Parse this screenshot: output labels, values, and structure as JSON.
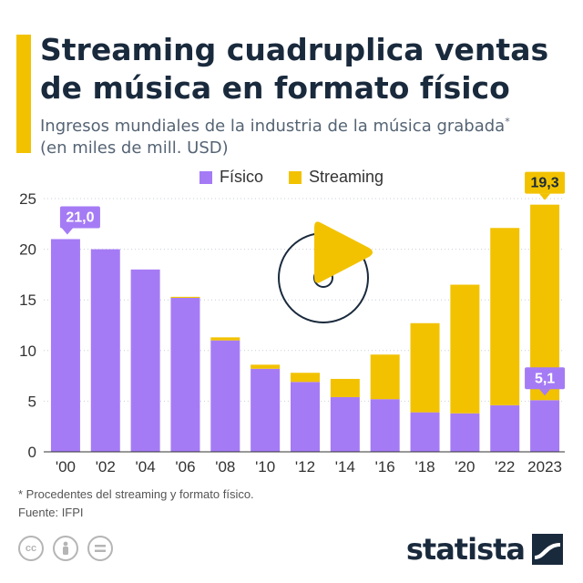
{
  "header": {
    "title": "Streaming cuadruplica ventas de música en formato físico",
    "subtitle": "Ingresos mundiales de la industria de la música grabada",
    "subtitle_mark": "*",
    "subtitle_unit": "(en miles de mill. USD)"
  },
  "colors": {
    "fisico": "#a57bf5",
    "streaming": "#f2c200",
    "accent": "#f2c200",
    "text_dark": "#1a2a3d"
  },
  "legend": {
    "fisico": "Físico",
    "streaming": "Streaming"
  },
  "chart_data": {
    "type": "bar",
    "stacked": true,
    "categories": [
      "'00",
      "'02",
      "'04",
      "'06",
      "'08",
      "'10",
      "'12",
      "'14",
      "'16",
      "'18",
      "'20",
      "'22",
      "2023"
    ],
    "series": [
      {
        "name": "Físico",
        "values": [
          21.0,
          20.0,
          18.0,
          15.2,
          11.0,
          8.2,
          6.9,
          5.4,
          5.2,
          3.9,
          3.8,
          4.6,
          5.1
        ]
      },
      {
        "name": "Streaming",
        "values": [
          0,
          0,
          0,
          0.1,
          0.3,
          0.4,
          0.9,
          1.8,
          4.4,
          8.8,
          12.7,
          17.5,
          19.3
        ]
      }
    ],
    "yticks": [
      0,
      5,
      10,
      15,
      20,
      25
    ],
    "ylim": [
      0,
      25
    ],
    "callouts": [
      {
        "category": "'00",
        "series": "Físico",
        "label": "21,0"
      },
      {
        "category": "2023",
        "series": "Streaming",
        "label": "19,3"
      },
      {
        "category": "2023",
        "series": "Físico",
        "label": "5,1"
      }
    ],
    "grid": true
  },
  "footer": {
    "note": "* Procedentes del streaming y formato físico.",
    "source": "Fuente: IFPI",
    "brand": "statista"
  }
}
